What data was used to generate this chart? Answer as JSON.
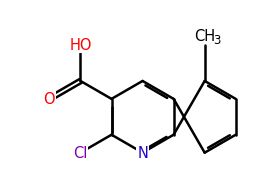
{
  "background_color": "#ffffff",
  "bond_color": "#000000",
  "atom_colors": {
    "O": "#ff0000",
    "N": "#2200cc",
    "Cl": "#7f00aa",
    "C": "#000000"
  },
  "bond_lw": 1.8,
  "font_size": 10.5,
  "font_size_sub": 8.5,
  "xlim": [
    -0.2,
    4.8
  ],
  "ylim": [
    -0.5,
    4.5
  ]
}
